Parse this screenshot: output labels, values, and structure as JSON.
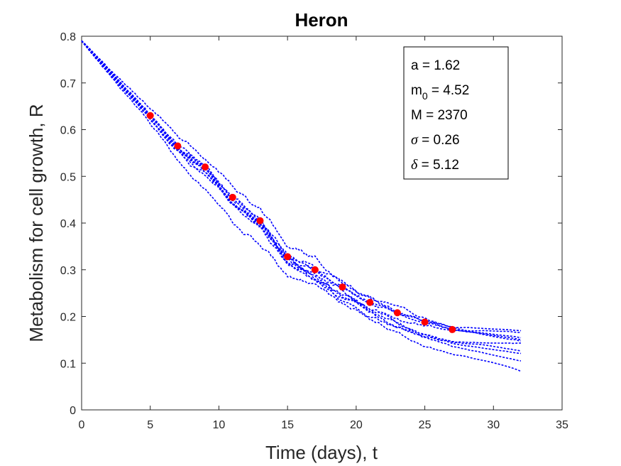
{
  "chart_data": {
    "type": "scatter",
    "title": "Heron",
    "xlabel": "Time (days), t",
    "ylabel": "Metabolism for cell growth, R",
    "xlim": [
      0,
      35
    ],
    "ylim": [
      0,
      0.8
    ],
    "xticks": [
      0,
      5,
      10,
      15,
      20,
      25,
      30,
      35
    ],
    "yticks": [
      0,
      0.1,
      0.2,
      0.3,
      0.4,
      0.5,
      0.6,
      0.7,
      0.8
    ],
    "grid": false,
    "colors": {
      "simulations": "#0000ff",
      "observed": "#ff0000"
    },
    "observed": {
      "x": [
        5,
        7,
        9,
        11,
        13,
        15,
        17,
        19,
        21,
        23,
        25,
        27
      ],
      "y": [
        0.63,
        0.565,
        0.52,
        0.455,
        0.405,
        0.328,
        0.3,
        0.263,
        0.23,
        0.208,
        0.188,
        0.172
      ]
    },
    "simulations": {
      "count": 10,
      "style": "dashed",
      "t_range": [
        0,
        32
      ],
      "start_value": 0.79,
      "end_values": [
        0.172,
        0.165,
        0.155,
        0.15,
        0.145,
        0.14,
        0.13,
        0.12,
        0.105,
        0.085
      ]
    },
    "parameters_box": {
      "placement": "top-right",
      "lines": [
        {
          "symbol": "a",
          "symbol_style": "plain",
          "sub": "",
          "text": " = 1.62"
        },
        {
          "symbol": "m",
          "symbol_style": "plain",
          "sub": "0",
          "text": " = 4.52"
        },
        {
          "symbol": "M",
          "symbol_style": "plain",
          "sub": "",
          "text": " = 2370"
        },
        {
          "symbol": "σ",
          "symbol_style": "italic",
          "sub": "",
          "text": " = 0.26"
        },
        {
          "symbol": "δ",
          "symbol_style": "italic",
          "sub": "",
          "text": " = 5.12"
        }
      ]
    }
  }
}
